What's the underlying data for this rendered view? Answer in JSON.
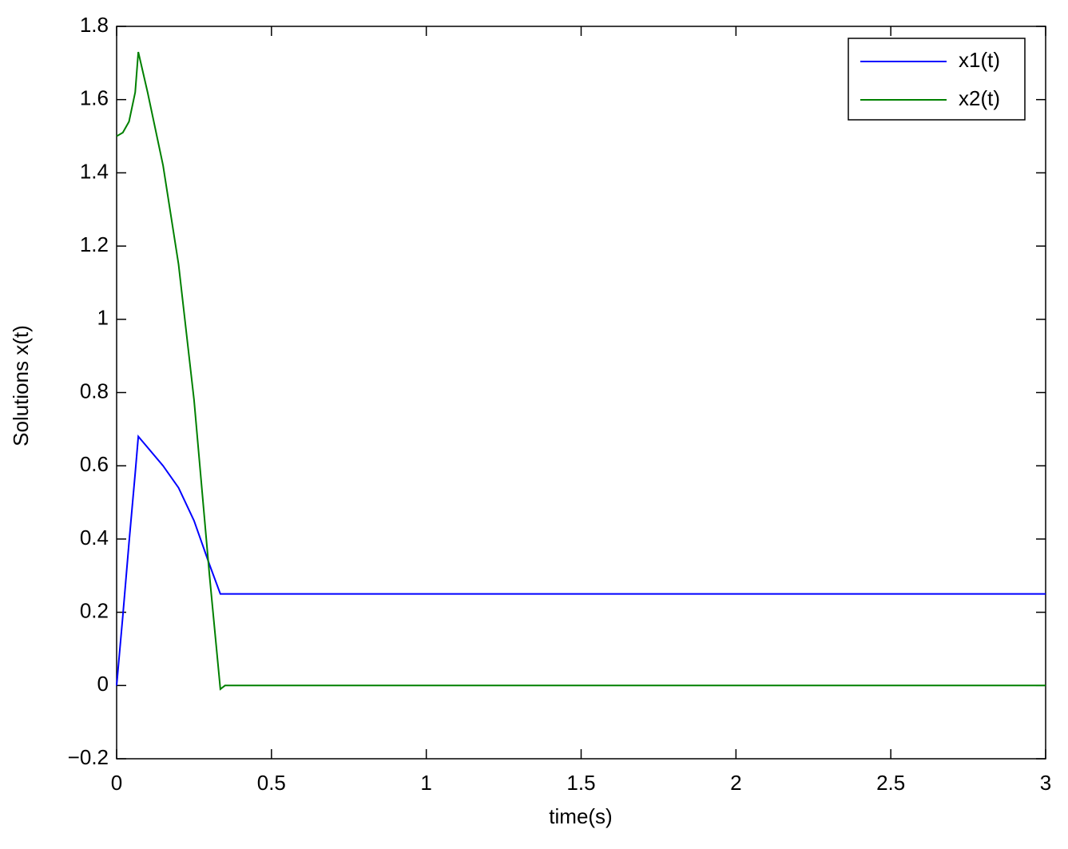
{
  "chart_data": {
    "type": "line",
    "xlabel": "time(s)",
    "ylabel": "Solutions x(t)",
    "x": [
      0,
      0.02,
      0.04,
      0.06,
      0.07,
      0.1,
      0.15,
      0.2,
      0.25,
      0.3,
      0.335,
      0.35,
      0.5,
      1,
      1.5,
      2,
      2.5,
      3
    ],
    "series": [
      {
        "name": "x1(t)",
        "color": "#0000ff",
        "values": [
          0,
          0.19,
          0.39,
          0.58,
          0.68,
          0.65,
          0.6,
          0.54,
          0.45,
          0.33,
          0.25,
          0.25,
          0.25,
          0.25,
          0.25,
          0.25,
          0.25,
          0.25
        ]
      },
      {
        "name": "x2(t)",
        "color": "#008000",
        "values": [
          1.5,
          1.51,
          1.54,
          1.62,
          1.73,
          1.62,
          1.42,
          1.15,
          0.78,
          0.3,
          -0.01,
          0,
          0,
          0,
          0,
          0,
          0,
          0
        ]
      }
    ],
    "xlim": [
      0,
      3
    ],
    "xticks": [
      0,
      0.5,
      1,
      1.5,
      2,
      2.5,
      3
    ],
    "ylim": [
      -0.2,
      1.8
    ],
    "yticks": [
      {
        "value": -0.2,
        "label": "−0.2"
      },
      0,
      0.2,
      0.4,
      0.6,
      0.8,
      1,
      1.2,
      1.4,
      1.6,
      1.8
    ],
    "legend": "upper right",
    "grid": false
  }
}
